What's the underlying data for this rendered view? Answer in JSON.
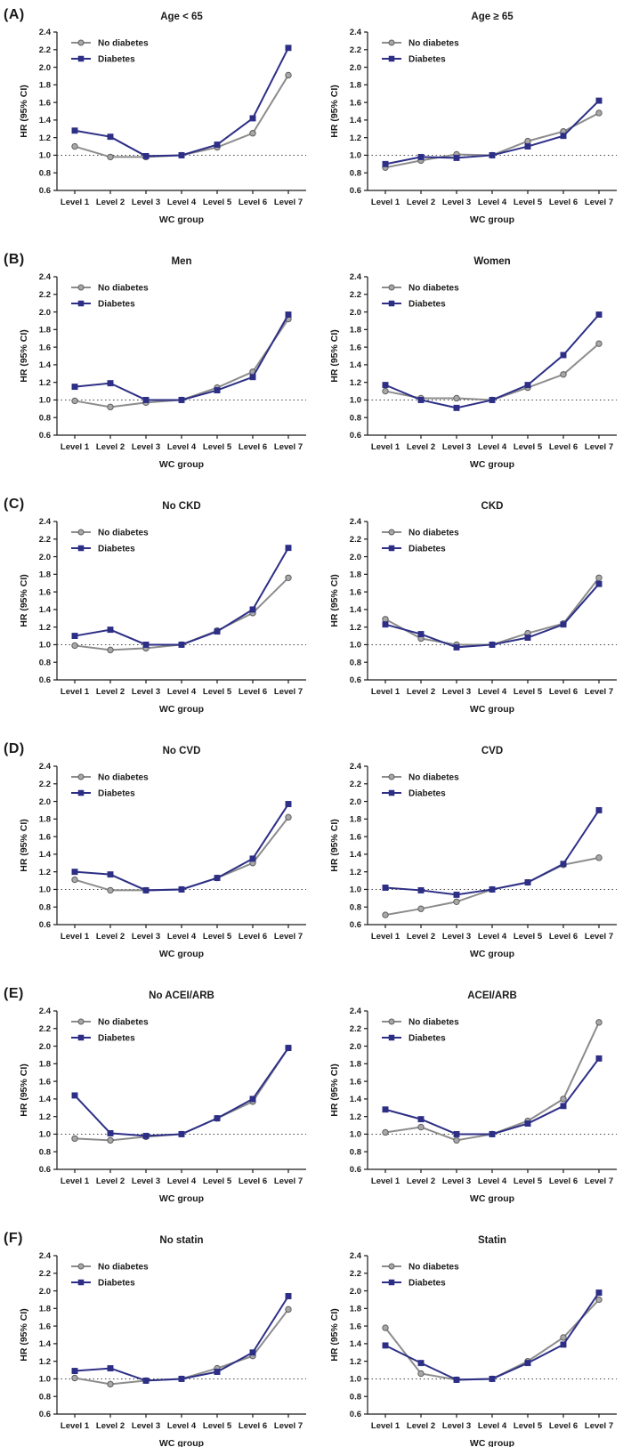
{
  "figure": {
    "panels": [
      {
        "label": "(A)"
      },
      {
        "label": "(B)"
      },
      {
        "label": "(C)"
      },
      {
        "label": "(D)"
      },
      {
        "label": "(E)"
      },
      {
        "label": "(F)"
      }
    ]
  },
  "chart_data": {
    "type": "line",
    "common": {
      "categories": [
        "Level 1",
        "Level 2",
        "Level 3",
        "Level 4",
        "Level 5",
        "Level 6",
        "Level 7"
      ],
      "xlabel": "WC group",
      "ylabel": "HR (95% CI)",
      "ylim": [
        0.6,
        2.4
      ],
      "yticks": [
        0.6,
        0.8,
        1.0,
        1.2,
        1.4,
        1.6,
        1.8,
        2.0,
        2.2,
        2.4
      ],
      "reference_line": 1.0,
      "grid": false,
      "legend_position": "top-left",
      "series_styles": [
        {
          "name": "No diabetes",
          "marker": "circle",
          "color": "#8c8c8c",
          "marker_fill": "#a8a8a8",
          "marker_edge": "#5f5f5f"
        },
        {
          "name": "Diabetes",
          "marker": "square",
          "color": "#2d2f86",
          "marker_fill": "#2d2f86",
          "marker_edge": "#2d2f86"
        }
      ]
    },
    "charts": [
      {
        "panel": "A",
        "title": "Age < 65",
        "series": [
          {
            "name": "No diabetes",
            "values": [
              1.1,
              0.98,
              0.98,
              1.0,
              1.09,
              1.25,
              1.91
            ]
          },
          {
            "name": "Diabetes",
            "values": [
              1.28,
              1.21,
              0.99,
              1.0,
              1.12,
              1.42,
              2.22
            ]
          }
        ]
      },
      {
        "panel": "A",
        "title": "Age ≥ 65",
        "series": [
          {
            "name": "No diabetes",
            "values": [
              0.86,
              0.94,
              1.01,
              1.0,
              1.16,
              1.27,
              1.48
            ]
          },
          {
            "name": "Diabetes",
            "values": [
              0.9,
              0.98,
              0.97,
              1.0,
              1.1,
              1.22,
              1.62
            ]
          }
        ]
      },
      {
        "panel": "B",
        "title": "Men",
        "series": [
          {
            "name": "No diabetes",
            "values": [
              0.99,
              0.92,
              0.97,
              1.0,
              1.14,
              1.32,
              1.92
            ]
          },
          {
            "name": "Diabetes",
            "values": [
              1.15,
              1.19,
              1.0,
              1.0,
              1.11,
              1.26,
              1.97
            ]
          }
        ]
      },
      {
        "panel": "B",
        "title": "Women",
        "series": [
          {
            "name": "No diabetes",
            "values": [
              1.1,
              1.02,
              1.02,
              1.0,
              1.14,
              1.29,
              1.64
            ]
          },
          {
            "name": "Diabetes",
            "values": [
              1.17,
              1.0,
              0.91,
              1.0,
              1.17,
              1.51,
              1.97
            ]
          }
        ]
      },
      {
        "panel": "C",
        "title": "No CKD",
        "series": [
          {
            "name": "No diabetes",
            "values": [
              0.99,
              0.94,
              0.96,
              1.0,
              1.16,
              1.36,
              1.76
            ]
          },
          {
            "name": "Diabetes",
            "values": [
              1.1,
              1.17,
              1.0,
              1.0,
              1.15,
              1.4,
              2.1
            ]
          }
        ]
      },
      {
        "panel": "C",
        "title": "CKD",
        "series": [
          {
            "name": "No diabetes",
            "values": [
              1.29,
              1.07,
              1.0,
              1.0,
              1.13,
              1.24,
              1.76
            ]
          },
          {
            "name": "Diabetes",
            "values": [
              1.23,
              1.12,
              0.97,
              1.0,
              1.08,
              1.23,
              1.69
            ]
          }
        ]
      },
      {
        "panel": "D",
        "title": "No CVD",
        "series": [
          {
            "name": "No diabetes",
            "values": [
              1.11,
              0.99,
              0.99,
              1.0,
              1.13,
              1.3,
              1.82
            ]
          },
          {
            "name": "Diabetes",
            "values": [
              1.2,
              1.17,
              0.99,
              1.0,
              1.13,
              1.35,
              1.97
            ]
          }
        ]
      },
      {
        "panel": "D",
        "title": "CVD",
        "series": [
          {
            "name": "No diabetes",
            "values": [
              0.71,
              0.78,
              0.86,
              1.0,
              1.08,
              1.28,
              1.36
            ]
          },
          {
            "name": "Diabetes",
            "values": [
              1.02,
              0.99,
              0.94,
              1.0,
              1.08,
              1.29,
              1.9
            ]
          }
        ]
      },
      {
        "panel": "E",
        "title": "No ACEI/ARB",
        "series": [
          {
            "name": "No diabetes",
            "values": [
              0.95,
              0.93,
              0.97,
              1.0,
              1.18,
              1.37,
              1.98
            ]
          },
          {
            "name": "Diabetes",
            "values": [
              1.44,
              1.01,
              0.98,
              1.0,
              1.18,
              1.4,
              1.98
            ]
          }
        ]
      },
      {
        "panel": "E",
        "title": "ACEI/ARB",
        "series": [
          {
            "name": "No diabetes",
            "values": [
              1.02,
              1.08,
              0.93,
              1.0,
              1.15,
              1.4,
              2.27
            ]
          },
          {
            "name": "Diabetes",
            "values": [
              1.28,
              1.17,
              1.0,
              1.0,
              1.12,
              1.32,
              1.86
            ]
          }
        ]
      },
      {
        "panel": "F",
        "title": "No statin",
        "series": [
          {
            "name": "No diabetes",
            "values": [
              1.01,
              0.94,
              0.98,
              1.0,
              1.12,
              1.26,
              1.79
            ]
          },
          {
            "name": "Diabetes",
            "values": [
              1.09,
              1.12,
              0.98,
              1.0,
              1.08,
              1.3,
              1.94
            ]
          }
        ]
      },
      {
        "panel": "F",
        "title": "Statin",
        "series": [
          {
            "name": "No diabetes",
            "values": [
              1.58,
              1.06,
              0.99,
              1.0,
              1.2,
              1.47,
              1.9
            ]
          },
          {
            "name": "Diabetes",
            "values": [
              1.38,
              1.18,
              0.99,
              1.0,
              1.18,
              1.39,
              1.98
            ]
          }
        ]
      }
    ]
  }
}
